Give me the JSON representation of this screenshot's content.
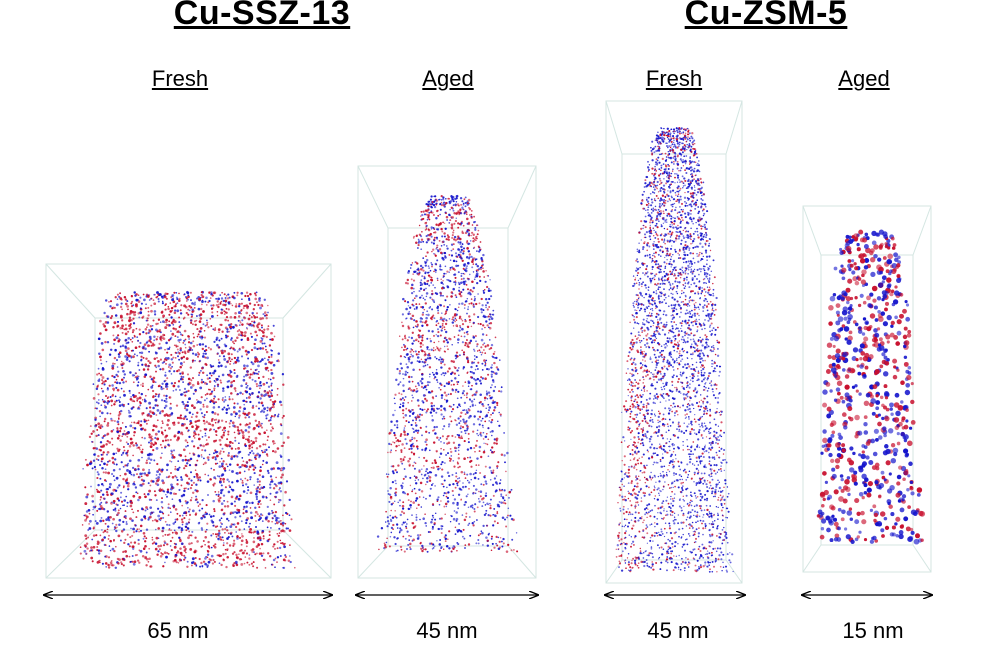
{
  "groups": [
    {
      "title": "Cu-SSZ-13"
    },
    {
      "title": "Cu-ZSM-5"
    }
  ],
  "panels": [
    {
      "label": "Fresh",
      "scale": "65 nm"
    },
    {
      "label": "Aged",
      "scale": "45 nm"
    },
    {
      "label": "Fresh",
      "scale": "45 nm"
    },
    {
      "label": "Aged",
      "scale": "15 nm"
    }
  ],
  "colors": {
    "red_atoms": "#c8102e",
    "blue_atoms": "#1515cc",
    "box_lines": "#cfe3df",
    "scale_arrow": "#000000"
  }
}
